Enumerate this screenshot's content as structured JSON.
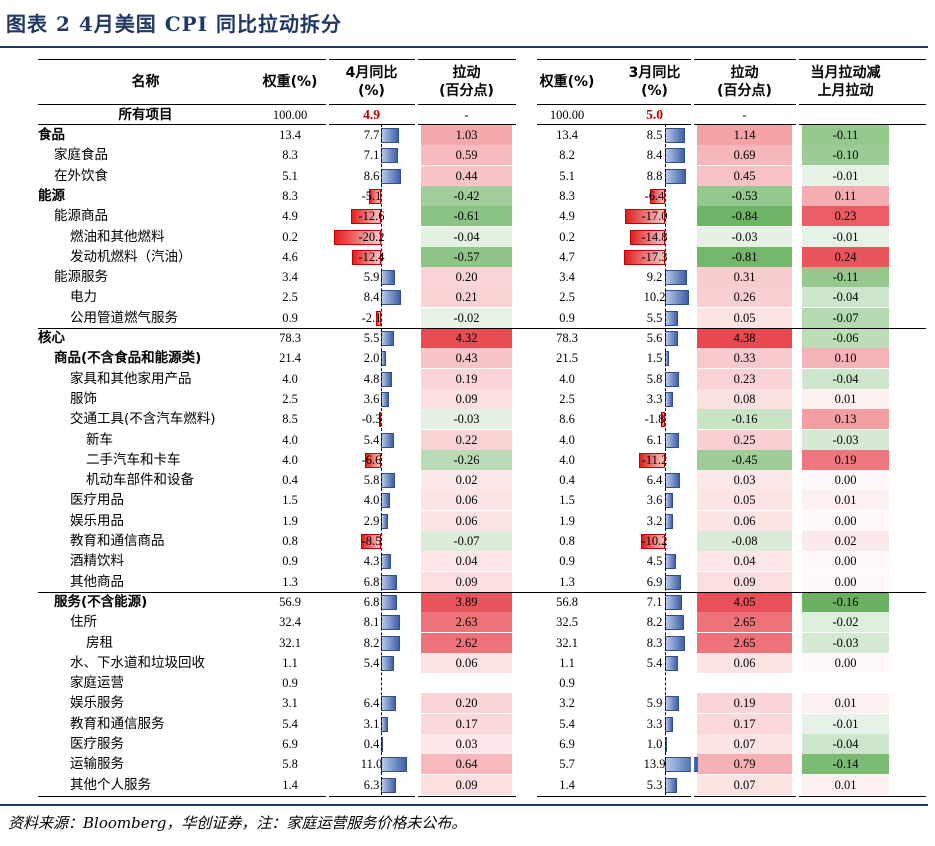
{
  "title": "图表 2 4月美国 CPI 同比拉动拆分",
  "header": {
    "name": "名称",
    "weight": "权重(%)",
    "apr_yoy": "4月同比\n(%)",
    "pull": "拉动\n(百分点)",
    "mar_yoy": "3月同比\n(%)",
    "diff": "当月拉动减\n上月拉动"
  },
  "totals": {
    "name": "所有项目",
    "w4": "100.00",
    "y4": "4.9",
    "c4": "-",
    "w3": "100.00",
    "y3": "5.0",
    "c3": "-",
    "d": ""
  },
  "rows": [
    {
      "name": "食品",
      "indent": 0,
      "bold": true,
      "w4": "13.4",
      "y4": "7.7",
      "c4": "1.03",
      "w3": "13.4",
      "y3": "8.5",
      "c3": "1.14",
      "d": "-0.11"
    },
    {
      "name": "家庭食品",
      "indent": 1,
      "bold": false,
      "w4": "8.3",
      "y4": "7.1",
      "c4": "0.59",
      "w3": "8.2",
      "y3": "8.4",
      "c3": "0.69",
      "d": "-0.10"
    },
    {
      "name": "在外饮食",
      "indent": 1,
      "bold": false,
      "w4": "5.1",
      "y4": "8.6",
      "c4": "0.44",
      "w3": "5.1",
      "y3": "8.8",
      "c3": "0.45",
      "d": "-0.01"
    },
    {
      "name": "能源",
      "indent": 0,
      "bold": true,
      "w4": "8.3",
      "y4": "-5.1",
      "c4": "-0.42",
      "w3": "8.3",
      "y3": "-6.4",
      "c3": "-0.53",
      "d": "0.11"
    },
    {
      "name": "能源商品",
      "indent": 1,
      "bold": false,
      "w4": "4.9",
      "y4": "-12.6",
      "c4": "-0.61",
      "w3": "4.9",
      "y3": "-17.0",
      "c3": "-0.84",
      "d": "0.23"
    },
    {
      "name": "燃油和其他燃料",
      "indent": 2,
      "bold": false,
      "w4": "0.2",
      "y4": "-20.2",
      "c4": "-0.04",
      "w3": "0.2",
      "y3": "-14.8",
      "c3": "-0.03",
      "d": "-0.01"
    },
    {
      "name": "发动机燃料（汽油）",
      "indent": 2,
      "bold": false,
      "w4": "4.6",
      "y4": "-12.4",
      "c4": "-0.57",
      "w3": "4.7",
      "y3": "-17.3",
      "c3": "-0.81",
      "d": "0.24"
    },
    {
      "name": "能源服务",
      "indent": 1,
      "bold": false,
      "w4": "3.4",
      "y4": "5.9",
      "c4": "0.20",
      "w3": "3.4",
      "y3": "9.2",
      "c3": "0.31",
      "d": "-0.11"
    },
    {
      "name": "电力",
      "indent": 2,
      "bold": false,
      "w4": "2.5",
      "y4": "8.4",
      "c4": "0.21",
      "w3": "2.5",
      "y3": "10.2",
      "c3": "0.26",
      "d": "-0.04"
    },
    {
      "name": "公用管道燃气服务",
      "indent": 2,
      "bold": false,
      "w4": "0.9",
      "y4": "-2.1",
      "c4": "-0.02",
      "w3": "0.9",
      "y3": "5.5",
      "c3": "0.05",
      "d": "-0.07"
    },
    {
      "name": "核心",
      "indent": 0,
      "bold": true,
      "w4": "78.3",
      "y4": "5.5",
      "c4": "4.32",
      "w3": "78.3",
      "y3": "5.6",
      "c3": "4.38",
      "d": "-0.06"
    },
    {
      "name": "商品(不含食品和能源类)",
      "indent": 1,
      "bold": true,
      "w4": "21.4",
      "y4": "2.0",
      "c4": "0.43",
      "w3": "21.5",
      "y3": "1.5",
      "c3": "0.33",
      "d": "0.10"
    },
    {
      "name": "家具和其他家用产品",
      "indent": 2,
      "bold": false,
      "w4": "4.0",
      "y4": "4.8",
      "c4": "0.19",
      "w3": "4.0",
      "y3": "5.8",
      "c3": "0.23",
      "d": "-0.04"
    },
    {
      "name": "服饰",
      "indent": 2,
      "bold": false,
      "w4": "2.5",
      "y4": "3.6",
      "c4": "0.09",
      "w3": "2.5",
      "y3": "3.3",
      "c3": "0.08",
      "d": "0.01"
    },
    {
      "name": "交通工具(不含汽车燃料)",
      "indent": 2,
      "bold": false,
      "w4": "8.5",
      "y4": "-0.3",
      "c4": "-0.03",
      "w3": "8.6",
      "y3": "-1.8",
      "c3": "-0.16",
      "d": "0.13"
    },
    {
      "name": "新车",
      "indent": 3,
      "bold": false,
      "w4": "4.0",
      "y4": "5.4",
      "c4": "0.22",
      "w3": "4.0",
      "y3": "6.1",
      "c3": "0.25",
      "d": "-0.03"
    },
    {
      "name": "二手汽车和卡车",
      "indent": 3,
      "bold": false,
      "w4": "4.0",
      "y4": "-6.6",
      "c4": "-0.26",
      "w3": "4.0",
      "y3": "-11.2",
      "c3": "-0.45",
      "d": "0.19"
    },
    {
      "name": "机动车部件和设备",
      "indent": 3,
      "bold": false,
      "w4": "0.4",
      "y4": "5.8",
      "c4": "0.02",
      "w3": "0.4",
      "y3": "6.4",
      "c3": "0.03",
      "d": "0.00"
    },
    {
      "name": "医疗用品",
      "indent": 2,
      "bold": false,
      "w4": "1.5",
      "y4": "4.0",
      "c4": "0.06",
      "w3": "1.5",
      "y3": "3.6",
      "c3": "0.05",
      "d": "0.01"
    },
    {
      "name": "娱乐用品",
      "indent": 2,
      "bold": false,
      "w4": "1.9",
      "y4": "2.9",
      "c4": "0.06",
      "w3": "1.9",
      "y3": "3.2",
      "c3": "0.06",
      "d": "0.00"
    },
    {
      "name": "教育和通信商品",
      "indent": 2,
      "bold": false,
      "w4": "0.8",
      "y4": "-8.5",
      "c4": "-0.07",
      "w3": "0.8",
      "y3": "-10.2",
      "c3": "-0.08",
      "d": "0.02"
    },
    {
      "name": "酒精饮料",
      "indent": 2,
      "bold": false,
      "w4": "0.9",
      "y4": "4.3",
      "c4": "0.04",
      "w3": "0.9",
      "y3": "4.5",
      "c3": "0.04",
      "d": "0.00"
    },
    {
      "name": "其他商品",
      "indent": 2,
      "bold": false,
      "w4": "1.3",
      "y4": "6.8",
      "c4": "0.09",
      "w3": "1.3",
      "y3": "6.9",
      "c3": "0.09",
      "d": "0.00"
    },
    {
      "name": "服务(不含能源)",
      "indent": 1,
      "bold": true,
      "w4": "56.9",
      "y4": "6.8",
      "c4": "3.89",
      "w3": "56.8",
      "y3": "7.1",
      "c3": "4.05",
      "d": "-0.16"
    },
    {
      "name": "住所",
      "indent": 2,
      "bold": false,
      "w4": "32.4",
      "y4": "8.1",
      "c4": "2.63",
      "w3": "32.5",
      "y3": "8.2",
      "c3": "2.65",
      "d": "-0.02"
    },
    {
      "name": "房租",
      "indent": 3,
      "bold": false,
      "w4": "32.1",
      "y4": "8.2",
      "c4": "2.62",
      "w3": "32.1",
      "y3": "8.3",
      "c3": "2.65",
      "d": "-0.03"
    },
    {
      "name": "水、下水道和垃圾回收",
      "indent": 2,
      "bold": false,
      "w4": "1.1",
      "y4": "5.4",
      "c4": "0.06",
      "w3": "1.1",
      "y3": "5.4",
      "c3": "0.06",
      "d": "0.00"
    },
    {
      "name": "家庭运营",
      "indent": 2,
      "bold": false,
      "w4": "0.9",
      "y4": "",
      "c4": "",
      "w3": "0.9",
      "y3": "",
      "c3": "",
      "d": ""
    },
    {
      "name": "娱乐服务",
      "indent": 2,
      "bold": false,
      "w4": "3.1",
      "y4": "6.4",
      "c4": "0.20",
      "w3": "3.2",
      "y3": "5.9",
      "c3": "0.19",
      "d": "0.01"
    },
    {
      "name": "教育和通信服务",
      "indent": 2,
      "bold": false,
      "w4": "5.4",
      "y4": "3.1",
      "c4": "0.17",
      "w3": "5.4",
      "y3": "3.3",
      "c3": "0.17",
      "d": "-0.01"
    },
    {
      "name": "医疗服务",
      "indent": 2,
      "bold": false,
      "w4": "6.9",
      "y4": "0.4",
      "c4": "0.03",
      "w3": "6.9",
      "y3": "1.0",
      "c3": "0.07",
      "d": "-0.04"
    },
    {
      "name": "运输服务",
      "indent": 2,
      "bold": false,
      "w4": "5.8",
      "y4": "11.0",
      "c4": "0.64",
      "w3": "5.7",
      "y3": "13.9",
      "c3": "0.79",
      "d": "-0.14"
    },
    {
      "name": "其他个人服务",
      "indent": 2,
      "bold": false,
      "w4": "1.4",
      "y4": "6.3",
      "c4": "0.09",
      "w3": "1.4",
      "y3": "5.3",
      "c3": "0.07",
      "d": "0.01"
    }
  ],
  "colors": {
    "accent": "#1f3864",
    "heat_pos": "#e8414a",
    "heat_neg": "#5aaa50",
    "highlight": "#c00000"
  },
  "source": "资料来源：Bloomberg，华创证券，注：家庭运营服务价格未公布。",
  "chart_data": {
    "type": "table",
    "title": "图表 2 4月美国 CPI 同比拉动拆分",
    "columns": [
      "名称",
      "权重(%)",
      "4月同比(%)",
      "拉动(百分点)",
      "权重(%)",
      "3月同比(%)",
      "拉动(百分点)",
      "当月拉动减上月拉动"
    ],
    "note": "rows listed in top-level rows[]; yoy columns rendered as data bars, pull/diff columns as heat-coloured cells"
  }
}
